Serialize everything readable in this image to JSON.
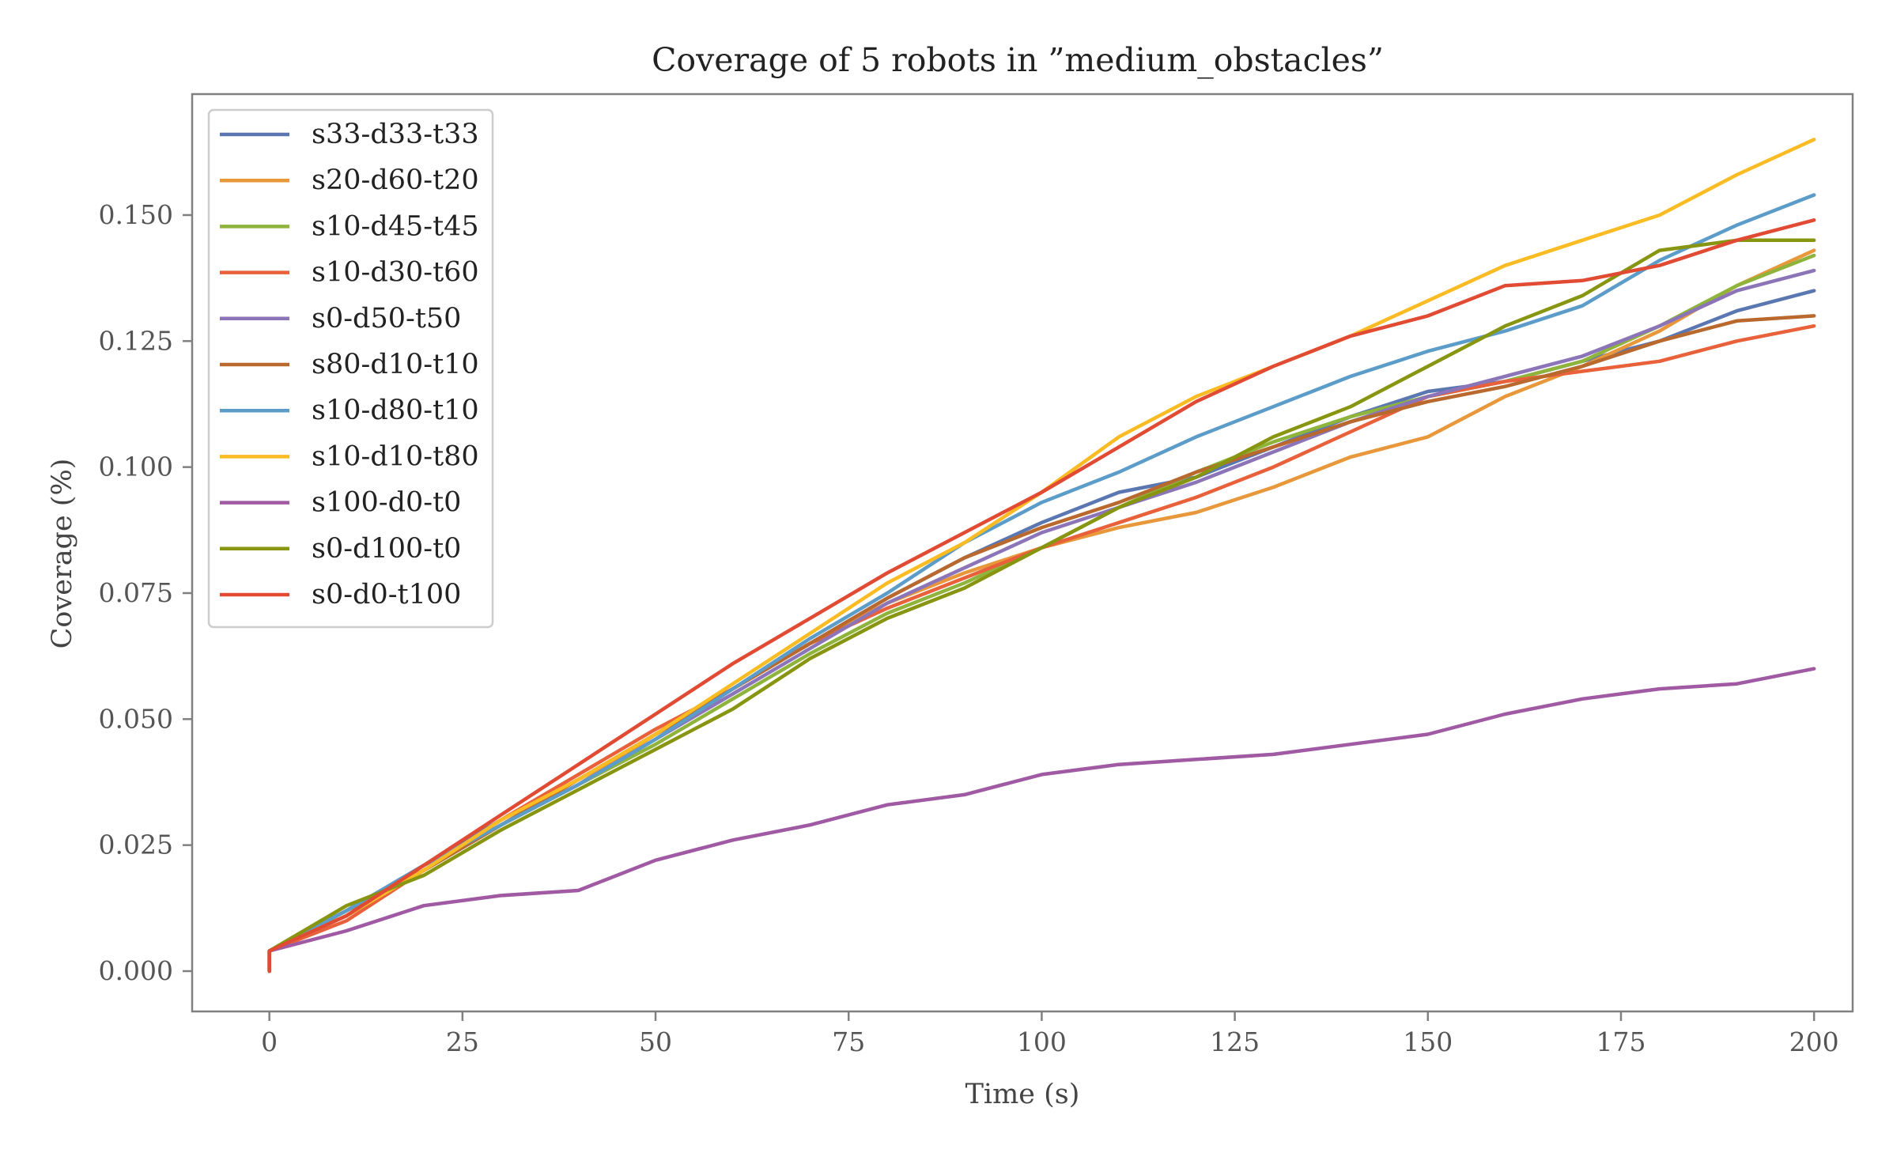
{
  "chart_data": {
    "type": "line",
    "title": "Coverage of 5 robots in ”medium_obstacles”",
    "xlabel": "Time (s)",
    "ylabel": "Coverage (%)",
    "xlim": [
      -10,
      205
    ],
    "ylim": [
      -0.008,
      0.174
    ],
    "xticks": [
      0,
      25,
      50,
      75,
      100,
      125,
      150,
      175,
      200
    ],
    "xtick_labels": [
      "0",
      "25",
      "50",
      "75",
      "100",
      "125",
      "150",
      "175",
      "200"
    ],
    "yticks": [
      0.0,
      0.025,
      0.05,
      0.075,
      0.1,
      0.125,
      0.15
    ],
    "ytick_labels": [
      "0.000",
      "0.025",
      "0.050",
      "0.075",
      "0.100",
      "0.125",
      "0.150"
    ],
    "grid": false,
    "legend_position": "upper-left",
    "x": [
      0,
      10,
      20,
      30,
      40,
      50,
      60,
      70,
      80,
      90,
      100,
      110,
      120,
      130,
      140,
      150,
      160,
      170,
      180,
      190,
      200
    ],
    "series": [
      {
        "name": "s33-d33-t33",
        "color": "#5a77b2",
        "values": [
          0.004,
          0.012,
          0.021,
          0.03,
          0.038,
          0.047,
          0.056,
          0.065,
          0.074,
          0.082,
          0.089,
          0.095,
          0.098,
          0.104,
          0.11,
          0.115,
          0.117,
          0.121,
          0.125,
          0.131,
          0.135
        ]
      },
      {
        "name": "s20-d60-t20",
        "color": "#e8983a",
        "values": [
          0.004,
          0.011,
          0.02,
          0.029,
          0.037,
          0.047,
          0.056,
          0.065,
          0.073,
          0.079,
          0.084,
          0.088,
          0.091,
          0.096,
          0.102,
          0.106,
          0.114,
          0.12,
          0.127,
          0.136,
          0.143
        ]
      },
      {
        "name": "s10-d45-t45",
        "color": "#8fb43c",
        "values": [
          0.004,
          0.012,
          0.02,
          0.029,
          0.037,
          0.045,
          0.054,
          0.063,
          0.071,
          0.077,
          0.084,
          0.092,
          0.099,
          0.105,
          0.11,
          0.114,
          0.117,
          0.121,
          0.128,
          0.136,
          0.142
        ]
      },
      {
        "name": "s10-d30-t60",
        "color": "#e8613a",
        "values": [
          0.004,
          0.01,
          0.02,
          0.03,
          0.039,
          0.048,
          0.056,
          0.065,
          0.072,
          0.078,
          0.084,
          0.089,
          0.094,
          0.1,
          0.107,
          0.114,
          0.117,
          0.119,
          0.121,
          0.125,
          0.128
        ]
      },
      {
        "name": "s0-d50-t50",
        "color": "#8b75b8",
        "values": [
          0.004,
          0.011,
          0.02,
          0.029,
          0.037,
          0.046,
          0.055,
          0.064,
          0.073,
          0.08,
          0.087,
          0.092,
          0.097,
          0.103,
          0.109,
          0.114,
          0.118,
          0.122,
          0.128,
          0.135,
          0.139
        ]
      },
      {
        "name": "s80-d10-t10",
        "color": "#b9692e",
        "values": [
          0.004,
          0.012,
          0.02,
          0.029,
          0.038,
          0.047,
          0.056,
          0.065,
          0.074,
          0.082,
          0.088,
          0.093,
          0.099,
          0.104,
          0.109,
          0.113,
          0.116,
          0.12,
          0.125,
          0.129,
          0.13
        ]
      },
      {
        "name": "s10-d80-t10",
        "color": "#5b9cc9",
        "values": [
          0.004,
          0.012,
          0.021,
          0.029,
          0.037,
          0.046,
          0.056,
          0.066,
          0.075,
          0.085,
          0.093,
          0.099,
          0.106,
          0.112,
          0.118,
          0.123,
          0.127,
          0.132,
          0.141,
          0.148,
          0.154
        ]
      },
      {
        "name": "s10-d10-t80",
        "color": "#fbbb22",
        "values": [
          0.004,
          0.011,
          0.02,
          0.03,
          0.038,
          0.047,
          0.057,
          0.067,
          0.077,
          0.085,
          0.095,
          0.106,
          0.114,
          0.12,
          0.126,
          0.133,
          0.14,
          0.145,
          0.15,
          0.158,
          0.165
        ]
      },
      {
        "name": "s100-d0-t0",
        "color": "#a05aa3",
        "values": [
          0.004,
          0.008,
          0.013,
          0.015,
          0.016,
          0.022,
          0.026,
          0.029,
          0.033,
          0.035,
          0.039,
          0.041,
          0.042,
          0.043,
          0.045,
          0.047,
          0.051,
          0.054,
          0.056,
          0.057,
          0.06
        ]
      },
      {
        "name": "s0-d100-t0",
        "color": "#889511",
        "values": [
          0.004,
          0.013,
          0.019,
          0.028,
          0.036,
          0.044,
          0.052,
          0.062,
          0.07,
          0.076,
          0.084,
          0.092,
          0.098,
          0.106,
          0.112,
          0.12,
          0.128,
          0.134,
          0.143,
          0.145,
          0.145
        ]
      },
      {
        "name": "s0-d0-t100",
        "color": "#e14a33",
        "values": [
          0.004,
          0.011,
          0.021,
          0.031,
          0.041,
          0.051,
          0.061,
          0.07,
          0.079,
          0.087,
          0.095,
          0.104,
          0.113,
          0.12,
          0.126,
          0.13,
          0.136,
          0.137,
          0.14,
          0.145,
          0.149
        ]
      }
    ]
  }
}
